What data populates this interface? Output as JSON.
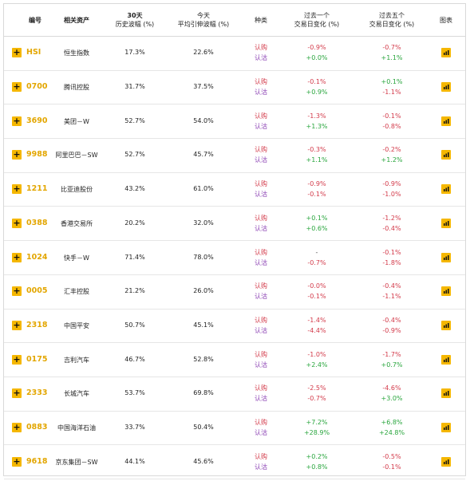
{
  "header": {
    "code": "编号",
    "asset": "相关资产",
    "hv_line1": "30天",
    "hv_line2": "历史波幅 (%)",
    "iv_line1": "今天",
    "iv_line2": "平均引伸波幅 (%)",
    "kind": "种类",
    "d1_line1": "过去一个",
    "d1_line2": "交易日变化 (%)",
    "d5_line1": "过去五个",
    "d5_line2": "交易日变化 (%)",
    "chart": "图表"
  },
  "labels": {
    "call": "认购",
    "put": "认沽",
    "expand": "+"
  },
  "rows": [
    {
      "code": "HSI",
      "name": "恒生指数",
      "hv": "17.3%",
      "iv": "22.6%",
      "d1_call": "-0.9%",
      "d1_put": "+0.0%",
      "d5_call": "-0.7%",
      "d5_put": "+1.1%"
    },
    {
      "code": "0700",
      "name": "腾讯控股",
      "hv": "31.7%",
      "iv": "37.5%",
      "d1_call": "-0.1%",
      "d1_put": "+0.9%",
      "d5_call": "+0.1%",
      "d5_put": "-1.1%"
    },
    {
      "code": "3690",
      "name": "美团－W",
      "hv": "52.7%",
      "iv": "54.0%",
      "d1_call": "-1.3%",
      "d1_put": "+1.3%",
      "d5_call": "-0.1%",
      "d5_put": "-0.8%"
    },
    {
      "code": "9988",
      "name": "阿里巴巴－SW",
      "hv": "52.7%",
      "iv": "45.7%",
      "d1_call": "-0.3%",
      "d1_put": "+1.1%",
      "d5_call": "-0.2%",
      "d5_put": "+1.2%"
    },
    {
      "code": "1211",
      "name": "比亚迪股份",
      "hv": "43.2%",
      "iv": "61.0%",
      "d1_call": "-0.9%",
      "d1_put": "-0.1%",
      "d5_call": "-0.9%",
      "d5_put": "-1.0%"
    },
    {
      "code": "0388",
      "name": "香港交易所",
      "hv": "20.2%",
      "iv": "32.0%",
      "d1_call": "+0.1%",
      "d1_put": "+0.6%",
      "d5_call": "-1.2%",
      "d5_put": "-0.4%"
    },
    {
      "code": "1024",
      "name": "快手－W",
      "hv": "71.4%",
      "iv": "78.0%",
      "d1_call": "-",
      "d1_put": "-0.7%",
      "d5_call": "-0.1%",
      "d5_put": "-1.8%"
    },
    {
      "code": "0005",
      "name": "汇丰控股",
      "hv": "21.2%",
      "iv": "26.0%",
      "d1_call": "-0.0%",
      "d1_put": "-0.1%",
      "d5_call": "-0.4%",
      "d5_put": "-1.1%"
    },
    {
      "code": "2318",
      "name": "中国平安",
      "hv": "50.7%",
      "iv": "45.1%",
      "d1_call": "-1.4%",
      "d1_put": "-4.4%",
      "d5_call": "-0.4%",
      "d5_put": "-0.9%"
    },
    {
      "code": "0175",
      "name": "吉利汽车",
      "hv": "46.7%",
      "iv": "52.8%",
      "d1_call": "-1.0%",
      "d1_put": "+2.4%",
      "d5_call": "-1.7%",
      "d5_put": "+0.7%"
    },
    {
      "code": "2333",
      "name": "长城汽车",
      "hv": "53.7%",
      "iv": "69.8%",
      "d1_call": "-2.5%",
      "d1_put": "-0.7%",
      "d5_call": "-4.6%",
      "d5_put": "+3.0%"
    },
    {
      "code": "0883",
      "name": "中国海洋石油",
      "hv": "33.7%",
      "iv": "50.4%",
      "d1_call": "+7.2%",
      "d1_put": "+28.9%",
      "d5_call": "+6.8%",
      "d5_put": "+24.8%"
    },
    {
      "code": "9618",
      "name": "京东集团－SW",
      "hv": "44.1%",
      "iv": "45.6%",
      "d1_call": "+0.2%",
      "d1_put": "+0.8%",
      "d5_call": "-0.5%",
      "d5_put": "-0.1%"
    }
  ],
  "colors": {
    "accent": "#f5b700",
    "code": "#e3a600",
    "negative": "#d33a4a",
    "positive": "#2aa63e",
    "put_label": "#8a3fb3"
  },
  "icons": {
    "expand": "plus-icon",
    "chart": "bar-chart-icon"
  }
}
